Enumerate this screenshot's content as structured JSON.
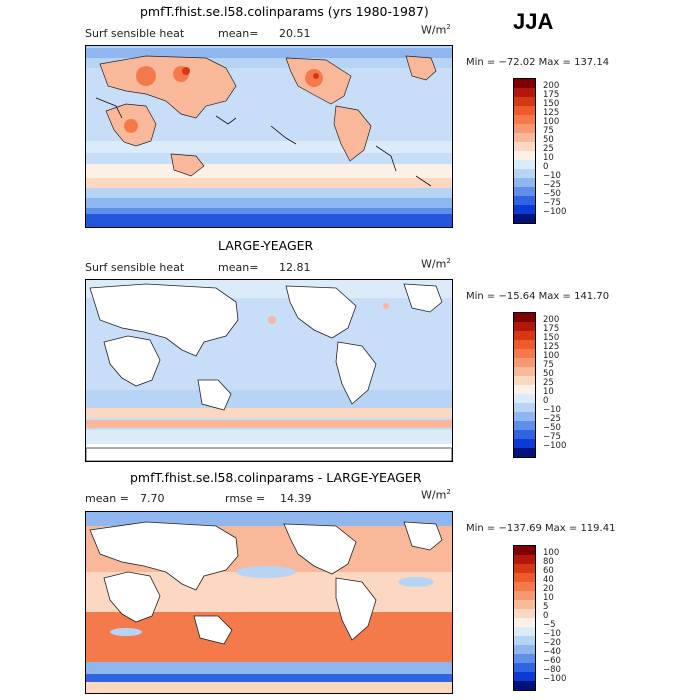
{
  "season": "JJA",
  "panels": [
    {
      "title": "pmfT.fhist.se.l58.colinparams (yrs 1980-1987)",
      "left_label": "Surf sensible heat",
      "stat1_label": "mean=",
      "stat1_value": "20.51",
      "stat2_label": "",
      "stat2_value": "",
      "units": "W/m",
      "units_exp": "2",
      "minmax": "Min = −72.02 Max = 137.14",
      "colorbar": {
        "levels": [
          "200",
          "175",
          "150",
          "125",
          "100",
          "75",
          "50",
          "25",
          "10",
          "0",
          "−10",
          "−25",
          "−50",
          "−75",
          "−100"
        ],
        "colors": [
          "#7f0000",
          "#b2180a",
          "#d73814",
          "#ef5a2c",
          "#f47a4c",
          "#f79970",
          "#f9b89a",
          "#fcd7c2",
          "#fdf0e6",
          "#dcebf9",
          "#b7d4f5",
          "#8fb6ef",
          "#5f8fe8",
          "#3164e0",
          "#0b3bd4",
          "#00137a"
        ]
      }
    },
    {
      "title": "LARGE-YEAGER",
      "left_label": "Surf sensible heat",
      "stat1_label": "mean=",
      "stat1_value": "12.81",
      "stat2_label": "",
      "stat2_value": "",
      "units": "W/m",
      "units_exp": "2",
      "minmax": "Min = −15.64 Max = 141.70",
      "colorbar": {
        "levels": [
          "200",
          "175",
          "150",
          "125",
          "100",
          "75",
          "50",
          "25",
          "10",
          "0",
          "−10",
          "−25",
          "−50",
          "−75",
          "−100"
        ],
        "colors": [
          "#7f0000",
          "#b2180a",
          "#d73814",
          "#ef5a2c",
          "#f47a4c",
          "#f79970",
          "#f9b89a",
          "#fcd7c2",
          "#fdf0e6",
          "#dcebf9",
          "#b7d4f5",
          "#8fb6ef",
          "#5f8fe8",
          "#3164e0",
          "#0b3bd4",
          "#00137a"
        ]
      }
    },
    {
      "title": "pmfT.fhist.se.l58.colinparams - LARGE-YEAGER",
      "left_label": "",
      "stat1_label": "mean =",
      "stat1_value": "7.70",
      "stat2_label": "rmse =",
      "stat2_value": "14.39",
      "units": "W/m",
      "units_exp": "2",
      "minmax": "Min = −137.69 Max = 119.41",
      "colorbar": {
        "levels": [
          "100",
          "80",
          "60",
          "40",
          "20",
          "10",
          "5",
          "0",
          "−5",
          "−10",
          "−20",
          "−40",
          "−60",
          "−80",
          "−100"
        ],
        "colors": [
          "#7f0000",
          "#b2180a",
          "#d73814",
          "#ef5a2c",
          "#f47a4c",
          "#f79970",
          "#f9b89a",
          "#fcd7c2",
          "#fdf0e6",
          "#dcebf9",
          "#b7d4f5",
          "#8fb6ef",
          "#5f8fe8",
          "#3164e0",
          "#0b3bd4",
          "#00137a"
        ]
      }
    }
  ]
}
